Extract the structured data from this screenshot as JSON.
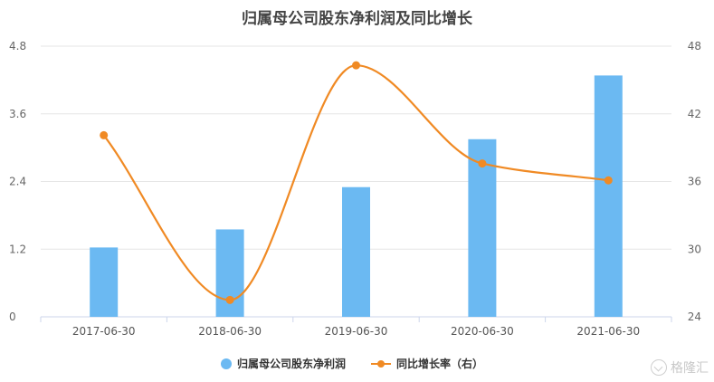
{
  "chart_data": {
    "type": "bar",
    "title": "归属母公司股东净利润及同比增长",
    "categories": [
      "2017-06-30",
      "2018-06-30",
      "2019-06-30",
      "2020-06-30",
      "2021-06-30"
    ],
    "series": [
      {
        "name": "归属母公司股东净利润",
        "type": "bar",
        "axis": "left",
        "values": [
          1.23,
          1.55,
          2.3,
          3.15,
          4.28
        ],
        "color": "#6bb9f2"
      },
      {
        "name": "同比增长率（右）",
        "type": "line",
        "smooth": true,
        "axis": "right",
        "values": [
          40.1,
          25.5,
          46.3,
          37.6,
          36.1
        ],
        "color": "#f08a24"
      }
    ],
    "y_left": {
      "ticks": [
        "0",
        "1.2",
        "2.4",
        "3.6",
        "4.8"
      ],
      "ylim": [
        0,
        4.8
      ]
    },
    "y_right": {
      "ticks": [
        "24",
        "30",
        "36",
        "42",
        "48"
      ],
      "ylim": [
        24,
        48
      ]
    },
    "grid": true,
    "legend_position": "bottom"
  },
  "watermark": {
    "text": "格隆汇"
  }
}
